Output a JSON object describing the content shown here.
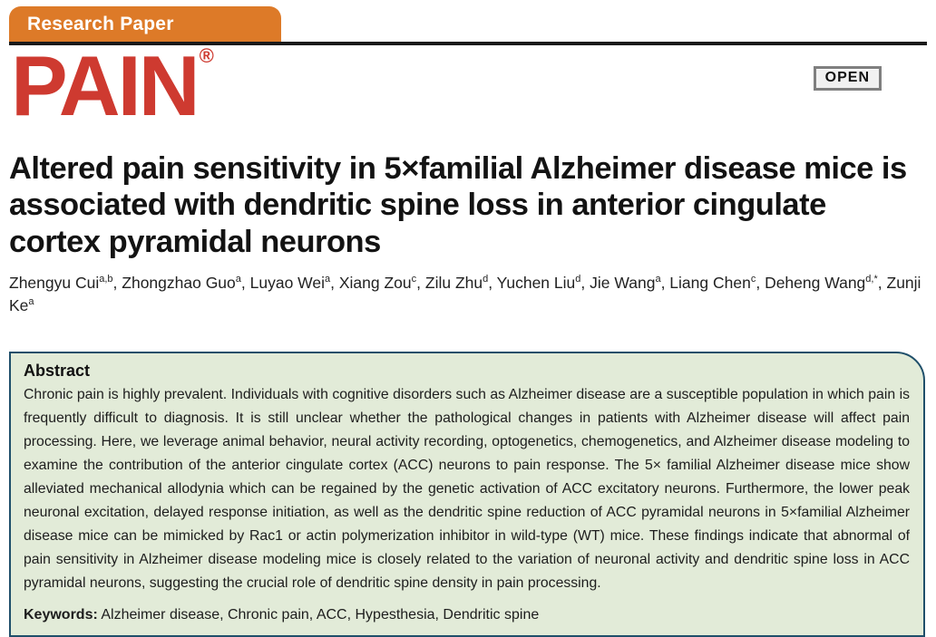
{
  "banner": {
    "label": "Research Paper",
    "bg_color": "#DD7A28",
    "text_color": "#FFFFFF"
  },
  "journal": {
    "logo_text": "PAIN",
    "registered_mark": "®",
    "logo_color": "#CE3A30"
  },
  "open_badge": {
    "label": "OPEN"
  },
  "article": {
    "title": "Altered pain sensitivity in 5×familial Alzheimer disease mice is associated with dendritic spine loss in anterior cingulate cortex pyramidal neurons",
    "authors": [
      {
        "name": "Zhengyu Cui",
        "sup": "a,b"
      },
      {
        "name": "Zhongzhao Guo",
        "sup": "a"
      },
      {
        "name": "Luyao Wei",
        "sup": "a"
      },
      {
        "name": "Xiang Zou",
        "sup": "c"
      },
      {
        "name": "Zilu Zhu",
        "sup": "d"
      },
      {
        "name": "Yuchen Liu",
        "sup": "d"
      },
      {
        "name": "Jie Wang",
        "sup": "a"
      },
      {
        "name": "Liang Chen",
        "sup": "c"
      },
      {
        "name": "Deheng Wang",
        "sup": "d,*"
      },
      {
        "name": "Zunji Ke",
        "sup": "a"
      }
    ],
    "author_separator": ", "
  },
  "abstract": {
    "heading": "Abstract",
    "body": "Chronic pain is highly prevalent. Individuals with cognitive disorders such as Alzheimer disease are a susceptible population in which pain is frequently difficult to diagnosis. It is still unclear whether the pathological changes in patients with Alzheimer disease will affect pain processing. Here, we leverage animal behavior, neural activity recording, optogenetics, chemogenetics, and Alzheimer disease modeling to examine the contribution of the anterior cingulate cortex (ACC) neurons to pain response. The 5× familial Alzheimer disease mice show alleviated mechanical allodynia which can be regained by the genetic activation of ACC excitatory neurons. Furthermore, the lower peak neuronal excitation, delayed response initiation, as well as the dendritic spine reduction of ACC pyramidal neurons in 5×familial Alzheimer disease mice can be mimicked by Rac1 or actin polymerization inhibitor in wild-type (WT) mice. These findings indicate that abnormal of pain sensitivity in Alzheimer disease modeling mice is closely related to the variation of neuronal activity and dendritic spine loss in ACC pyramidal neurons, suggesting the crucial role of dendritic spine density in pain processing.",
    "keywords_label": "Keywords:",
    "keywords": "Alzheimer disease, Chronic pain, ACC, Hypesthesia, Dendritic spine",
    "bg_color": "#E2EBD8",
    "border_color": "#1F4F6A"
  }
}
